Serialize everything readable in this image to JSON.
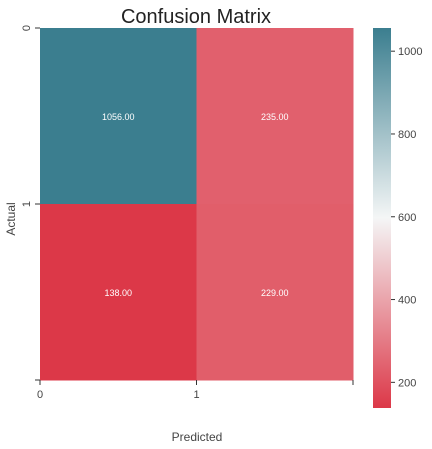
{
  "chart_data": {
    "type": "heatmap",
    "title": "Confusion Matrix",
    "xlabel": "Predicted",
    "ylabel": "Actual",
    "x_tick_labels": [
      "0",
      "1",
      ""
    ],
    "y_tick_labels": [
      "0",
      "1",
      ""
    ],
    "values": [
      [
        1056,
        235
      ],
      [
        138,
        229
      ]
    ],
    "cell_labels": [
      [
        "1056.00",
        "235.00"
      ],
      [
        "138.00",
        "229.00"
      ]
    ],
    "colorbar": {
      "range": [
        138,
        1056
      ],
      "ticks": [
        200,
        400,
        600,
        800,
        1000
      ],
      "tick_labels": [
        "200",
        "400",
        "600",
        "800",
        "1000"
      ]
    },
    "colors": {
      "low": "#dc3848",
      "mid": "#f4f6f6",
      "high": "#3b7e8f",
      "axis_text": "#444444",
      "title_text": "#222222",
      "cell_text": "#ffffff"
    },
    "grid": false
  }
}
